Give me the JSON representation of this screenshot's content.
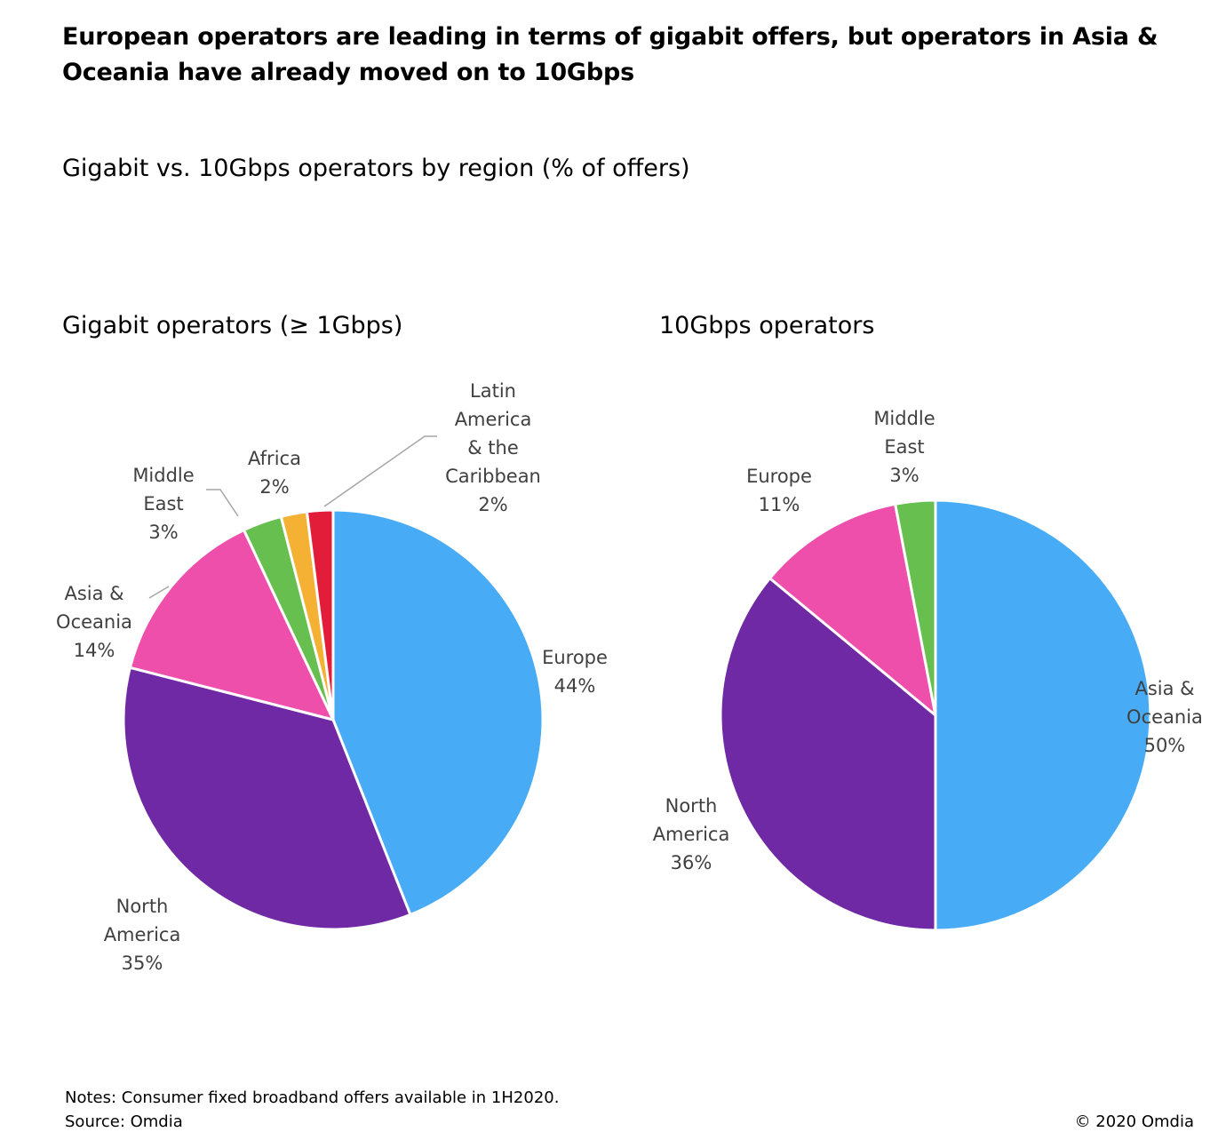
{
  "headline": "European operators are leading in terms of gigabit offers, but operators in Asia & Oceania have already moved on to 10Gbps",
  "subtitle": "Gigabit vs. 10Gbps operators by region (% of offers)",
  "notes": {
    "line1": "Notes: Consumer fixed broadband offers available in 1H2020.",
    "line2": "Source: Omdia"
  },
  "copyright": "© 2020 Omdia",
  "chart_data": [
    {
      "type": "pie",
      "title": "Gigabit operators (≥ 1Gbps)",
      "slices": [
        {
          "name": "Europe",
          "value": 44,
          "label": "44%",
          "color": "#47ABF5"
        },
        {
          "name": "North America",
          "value": 35,
          "label": "35%",
          "color": "#7029A4"
        },
        {
          "name": "Asia & Oceania",
          "value": 14,
          "label": "14%",
          "color": "#EE4FAB"
        },
        {
          "name": "Middle East",
          "value": 3,
          "label": "3%",
          "color": "#66BF4F"
        },
        {
          "name": "Africa",
          "value": 2,
          "label": "2%",
          "color": "#F5B133"
        },
        {
          "name": "Latin America & the Caribbean",
          "value": 2,
          "label": "2%",
          "color": "#E11D3A"
        }
      ]
    },
    {
      "type": "pie",
      "title": "10Gbps operators",
      "slices": [
        {
          "name": "Asia & Oceania",
          "value": 50,
          "label": "50%",
          "color": "#47ABF5"
        },
        {
          "name": "North America",
          "value": 36,
          "label": "36%",
          "color": "#7029A4"
        },
        {
          "name": "Europe",
          "value": 11,
          "label": "11%",
          "color": "#EE4FAB"
        },
        {
          "name": "Middle East",
          "value": 3,
          "label": "3%",
          "color": "#66BF4F"
        }
      ]
    }
  ]
}
